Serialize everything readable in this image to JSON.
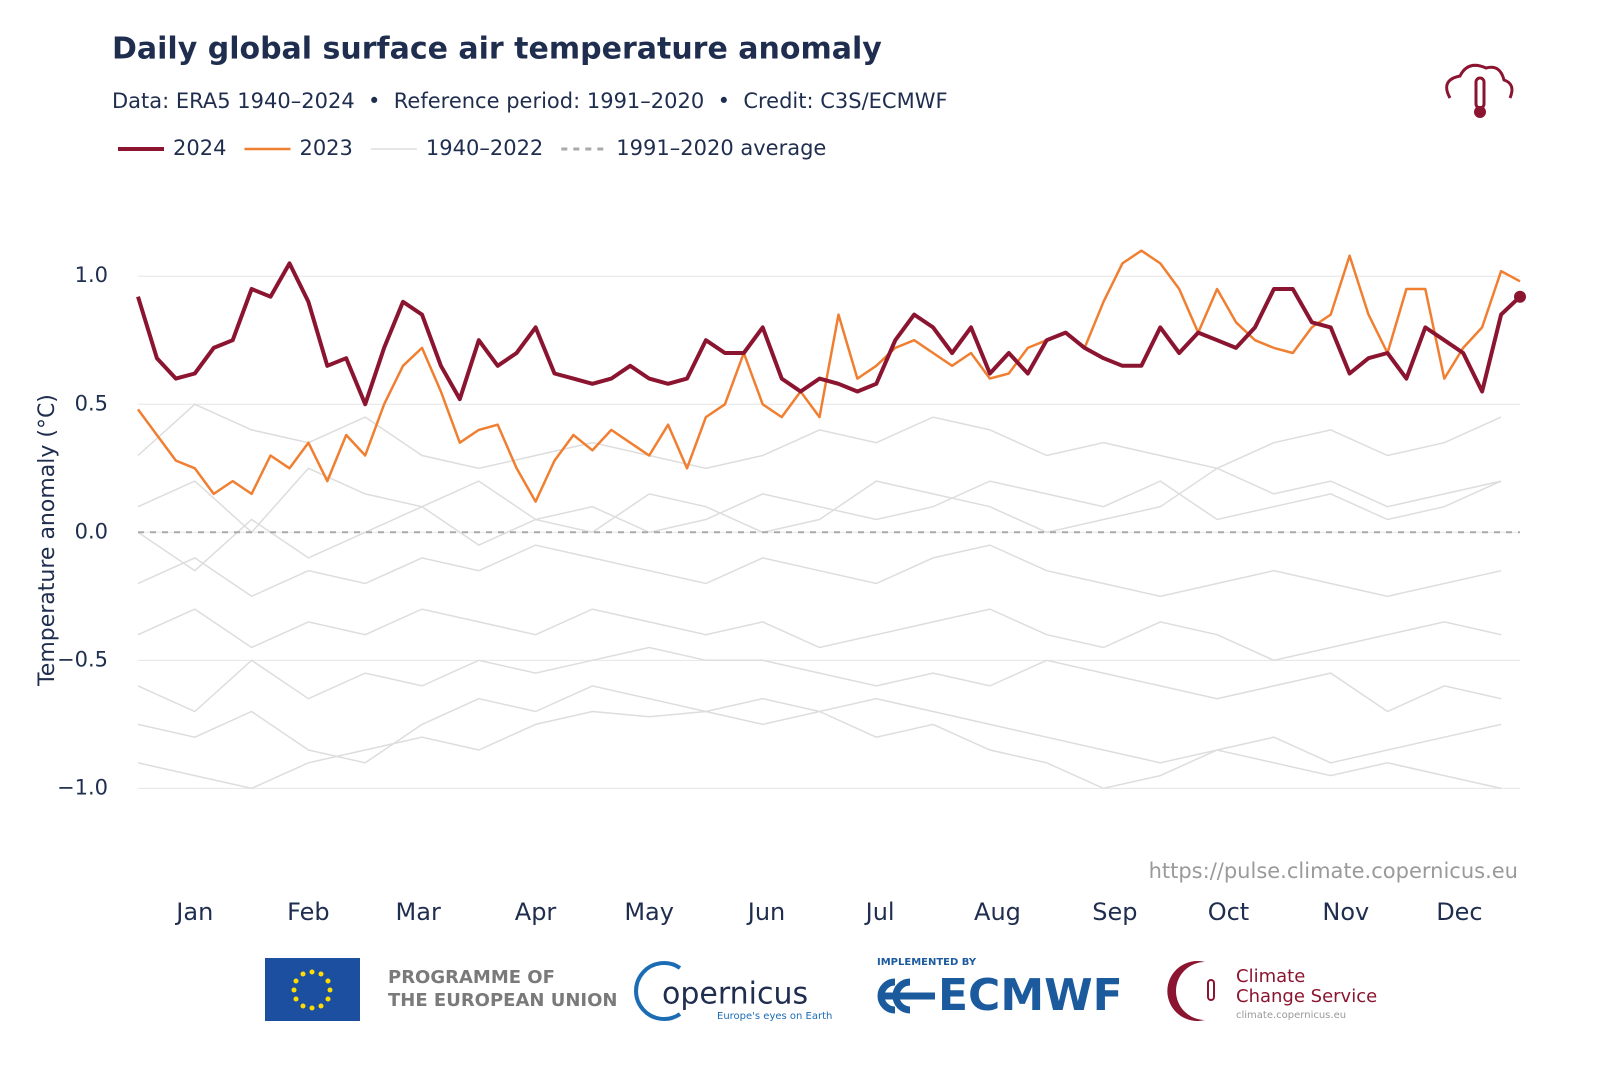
{
  "chart_data": {
    "type": "line",
    "title": "Daily global surface air temperature anomaly",
    "subtitle": "Data: ERA5 1940–2024  •  Reference period: 1991–2020  •  Credit: C3S/ECMWF",
    "ylabel": "Temperature anomaly (°C)",
    "source": "https://pulse.climate.copernicus.eu",
    "xlim": [
      1,
      366
    ],
    "ylim": [
      -1.35,
      1.2
    ],
    "xticks": [
      {
        "value": 16,
        "label": "Jan"
      },
      {
        "value": 46,
        "label": "Feb"
      },
      {
        "value": 75,
        "label": "Mar"
      },
      {
        "value": 106,
        "label": "Apr"
      },
      {
        "value": 136,
        "label": "May"
      },
      {
        "value": 167,
        "label": "Jun"
      },
      {
        "value": 197,
        "label": "Jul"
      },
      {
        "value": 228,
        "label": "Aug"
      },
      {
        "value": 259,
        "label": "Sep"
      },
      {
        "value": 289,
        "label": "Oct"
      },
      {
        "value": 320,
        "label": "Nov"
      },
      {
        "value": 350,
        "label": "Dec"
      }
    ],
    "yticks": [
      {
        "value": 1.0,
        "label": "1.0"
      },
      {
        "value": 0.5,
        "label": "0.5"
      },
      {
        "value": 0,
        "label": "0.0"
      },
      {
        "value": -0.5,
        "label": "−0.5"
      },
      {
        "value": -1.0,
        "label": "−1.0"
      }
    ],
    "grid": true,
    "x": [
      1,
      6,
      11,
      16,
      21,
      26,
      31,
      36,
      41,
      46,
      51,
      56,
      61,
      66,
      71,
      76,
      81,
      86,
      91,
      96,
      101,
      106,
      111,
      116,
      121,
      126,
      131,
      136,
      141,
      146,
      151,
      156,
      161,
      166,
      171,
      176,
      181,
      186,
      191,
      196,
      201,
      206,
      211,
      216,
      221,
      226,
      231,
      236,
      241,
      246,
      251,
      256,
      261,
      266,
      271,
      276,
      281,
      286,
      291,
      296,
      301,
      306,
      311,
      316,
      321,
      326,
      331,
      336,
      341,
      346,
      351,
      356,
      361,
      366
    ],
    "series": [
      {
        "name": "2024",
        "color": "#8b1530",
        "width": 4,
        "values": [
          0.92,
          0.68,
          0.6,
          0.62,
          0.72,
          0.75,
          0.95,
          0.92,
          1.05,
          0.9,
          0.65,
          0.68,
          0.5,
          0.72,
          0.9,
          0.85,
          0.65,
          0.52,
          0.75,
          0.65,
          0.7,
          0.8,
          0.62,
          0.6,
          0.58,
          0.6,
          0.65,
          0.6,
          0.58,
          0.6,
          0.75,
          0.7,
          0.7,
          0.8,
          0.6,
          0.55,
          0.6,
          0.58,
          0.55,
          0.58,
          0.75,
          0.85,
          0.8,
          0.7,
          0.8,
          0.62,
          0.7,
          0.62,
          0.75,
          0.78,
          0.72,
          0.68,
          0.65,
          0.65,
          0.8,
          0.7,
          0.78,
          0.75,
          0.72,
          0.8,
          0.95,
          0.95,
          0.82,
          0.8,
          0.62,
          0.68,
          0.7,
          0.6,
          0.8,
          0.75,
          0.7,
          0.55,
          0.85,
          0.92
        ]
      },
      {
        "name": "2023",
        "color": "#f07f32",
        "width": 2.5,
        "values": [
          0.48,
          0.38,
          0.28,
          0.25,
          0.15,
          0.2,
          0.15,
          0.3,
          0.25,
          0.35,
          0.2,
          0.38,
          0.3,
          0.5,
          0.65,
          0.72,
          0.55,
          0.35,
          0.4,
          0.42,
          0.25,
          0.12,
          0.28,
          0.38,
          0.32,
          0.4,
          0.35,
          0.3,
          0.42,
          0.25,
          0.45,
          0.5,
          0.7,
          0.5,
          0.45,
          0.55,
          0.45,
          0.85,
          0.6,
          0.65,
          0.72,
          0.75,
          0.7,
          0.65,
          0.7,
          0.6,
          0.62,
          0.72,
          0.75,
          0.78,
          0.72,
          0.9,
          1.05,
          1.1,
          1.05,
          0.95,
          0.78,
          0.95,
          0.82,
          0.75,
          0.72,
          0.7,
          0.8,
          0.85,
          1.08,
          0.85,
          0.7,
          0.95,
          0.95,
          0.6,
          0.72,
          0.8,
          1.02,
          0.98
        ]
      },
      {
        "name": "1940–2022",
        "color": "#dddddd",
        "width": 1.5,
        "x": [
          1,
          16,
          31,
          46,
          61,
          76,
          91,
          106,
          121,
          136,
          151,
          166,
          181,
          196,
          211,
          226,
          241,
          256,
          271,
          286,
          301,
          316,
          331,
          346,
          361
        ],
        "values": [
          [
            -0.9,
            -0.95,
            -1.0,
            -0.9,
            -0.85,
            -0.8,
            -0.85,
            -0.75,
            -0.7,
            -0.72,
            -0.7,
            -0.65,
            -0.7,
            -0.65,
            -0.7,
            -0.75,
            -0.8,
            -0.85,
            -0.9,
            -0.85,
            -0.9,
            -0.95,
            -0.9,
            -0.95,
            -1.0
          ],
          [
            -0.6,
            -0.7,
            -0.5,
            -0.65,
            -0.55,
            -0.6,
            -0.5,
            -0.55,
            -0.5,
            -0.45,
            -0.5,
            -0.5,
            -0.55,
            -0.6,
            -0.55,
            -0.6,
            -0.5,
            -0.55,
            -0.6,
            -0.65,
            -0.6,
            -0.55,
            -0.7,
            -0.6,
            -0.65
          ],
          [
            -0.4,
            -0.3,
            -0.45,
            -0.35,
            -0.4,
            -0.3,
            -0.35,
            -0.4,
            -0.3,
            -0.35,
            -0.4,
            -0.35,
            -0.45,
            -0.4,
            -0.35,
            -0.3,
            -0.4,
            -0.45,
            -0.35,
            -0.4,
            -0.5,
            -0.45,
            -0.4,
            -0.35,
            -0.4
          ],
          [
            -0.2,
            -0.1,
            -0.25,
            -0.15,
            -0.2,
            -0.1,
            -0.15,
            -0.05,
            -0.1,
            -0.15,
            -0.2,
            -0.1,
            -0.15,
            -0.2,
            -0.1,
            -0.05,
            -0.15,
            -0.2,
            -0.25,
            -0.2,
            -0.15,
            -0.2,
            -0.25,
            -0.2,
            -0.15
          ],
          [
            0.1,
            0.2,
            0.0,
            0.25,
            0.15,
            0.1,
            0.2,
            0.05,
            0.1,
            0.0,
            0.05,
            0.15,
            0.1,
            0.05,
            0.1,
            0.2,
            0.15,
            0.1,
            0.2,
            0.05,
            0.1,
            0.15,
            0.05,
            0.1,
            0.2
          ],
          [
            0.3,
            0.5,
            0.4,
            0.35,
            0.45,
            0.3,
            0.25,
            0.3,
            0.35,
            0.3,
            0.25,
            0.3,
            0.4,
            0.35,
            0.45,
            0.4,
            0.3,
            0.35,
            0.3,
            0.25,
            0.35,
            0.4,
            0.3,
            0.35,
            0.45
          ],
          [
            -0.75,
            -0.8,
            -0.7,
            -0.85,
            -0.9,
            -0.75,
            -0.65,
            -0.7,
            -0.6,
            -0.65,
            -0.7,
            -0.75,
            -0.7,
            -0.8,
            -0.75,
            -0.85,
            -0.9,
            -1.0,
            -0.95,
            -0.85,
            -0.8,
            -0.9,
            -0.85,
            -0.8,
            -0.75
          ],
          [
            0.0,
            -0.15,
            0.05,
            -0.1,
            0.0,
            0.1,
            -0.05,
            0.05,
            0.0,
            0.15,
            0.1,
            0.0,
            0.05,
            0.2,
            0.15,
            0.1,
            0.0,
            0.05,
            0.1,
            0.25,
            0.15,
            0.2,
            0.1,
            0.15,
            0.2
          ]
        ]
      }
    ],
    "reference_line": {
      "name": "1991–2020 average",
      "value": 0,
      "color": "#aaaaaa"
    }
  },
  "footer": {
    "eu_line1": "PROGRAMME OF",
    "eu_line2": "THE EUROPEAN UNION",
    "copernicus": "opernicus",
    "copernicus_tagline": "Europe's eyes on Earth",
    "implemented_by": "IMPLEMENTED BY",
    "ecmwf": "ECMWF",
    "c3s_line1": "Climate",
    "c3s_line2": "Change Service",
    "c3s_url": "climate.copernicus.eu"
  }
}
